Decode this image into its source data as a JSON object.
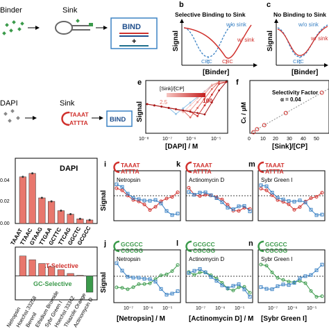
{
  "panels": {
    "a": {
      "binder_label": "Binder",
      "sink_label": "Sink",
      "bind_label": "BIND",
      "plus_label": "+"
    },
    "b": {
      "letter": "b",
      "title": "Selective Binding to Sink",
      "legend_no_sink": "w/o sink",
      "legend_sink": "w/ sink",
      "cbc_left": "CBC",
      "cbc_right": "CBC",
      "ylabel": "Signal",
      "xlabel": "[Binder]"
    },
    "c": {
      "letter": "c",
      "title": "No Binding to Sink",
      "legend_no_sink": "w/o sink",
      "legend_sink": "w/ sink",
      "cbc": "CBC",
      "ylabel": "Signal",
      "xlabel": "[Binder]"
    },
    "d": {
      "dapi_label": "DAPI",
      "sink_label": "Sink",
      "sink_seq_top": "TAAAT",
      "sink_seq_bot": "ATTTA",
      "bind_label": "BIND"
    },
    "e": {
      "letter": "e",
      "ylabel": "Signal",
      "xlabel": "[DAPI] / M",
      "legend_title": "[Sink]/[CP]",
      "legend_min": "2.5",
      "legend_max": "100",
      "xticks": [
        "10⁻⁸",
        "10⁻⁷",
        "10⁻⁶",
        "10⁻⁵"
      ]
    },
    "f": {
      "letter": "f",
      "ylabel": "Cₜ / µM",
      "xlabel": "[Sink]/[CP]",
      "annot_title": "Selectivity Factor",
      "annot_value": "α = 0.04",
      "xticks": [
        "0",
        "10",
        "20",
        "30",
        "40",
        "50"
      ]
    },
    "g": {
      "title": "DAPI",
      "yticks": [
        "0.04",
        "0.02",
        "0.00"
      ]
    },
    "h": {
      "at_label": "AT-Selective",
      "gc_label": "GC-Selective"
    },
    "grid": {
      "ylabel": "Signal",
      "xticks": [
        "10⁻⁷",
        "10⁻⁶",
        "10⁻⁵"
      ],
      "dashed_label": "0.5",
      "i": {
        "letter": "i",
        "drug": "Netropsin",
        "seq_top": "TAAAT",
        "seq_bot": "ATTTA"
      },
      "k": {
        "letter": "k",
        "drug": "Actinomycin D",
        "seq_top": "TAAAT",
        "seq_bot": "ATTTA"
      },
      "m": {
        "letter": "m",
        "drug": "Sybr Green I",
        "seq_top": "TAAAT",
        "seq_bot": "ATTTA"
      },
      "j": {
        "letter": "j",
        "drug": "Netropsin",
        "seq_top": "GCGCC",
        "seq_bot": "CGCGG"
      },
      "l": {
        "letter": "l",
        "drug": "Actinomycin D",
        "seq_top": "GCGCC",
        "seq_bot": "CGCGG"
      },
      "n": {
        "letter": "n",
        "drug": "Sybr Green I",
        "seq_top": "GCGCC",
        "seq_bot": "CGCGG"
      },
      "xlabel_j": "[Netropsin] / M",
      "xlabel_l": "[Actinomycin D] / M",
      "xlabel_n": "[Sybr Green I]"
    }
  },
  "chart_data": [
    {
      "panel": "g",
      "type": "bar",
      "title": "DAPI",
      "categories": [
        "TAAAT",
        "TTAAC",
        "GTAAG",
        "TTGAA",
        "GCTTC",
        "TTCAG",
        "GGCTC",
        "GCGCC"
      ],
      "values": [
        0.04,
        0.043,
        0.022,
        0.019,
        0.011,
        0.008,
        0.004,
        0.003
      ],
      "ylim": [
        0,
        0.05
      ],
      "color": "#e8776d"
    },
    {
      "panel": "h",
      "type": "bar",
      "categories": [
        "Netropsin",
        "Hoechst 33258",
        "Berenil",
        "Ethidium Bromide",
        "Sybr Green I",
        "Hoechst 33342",
        "Thiazole Orange",
        "Actinomycin D"
      ],
      "values": [
        1.6,
        1.3,
        1.0,
        0.75,
        0.5,
        0.2,
        0.05,
        -1.3
      ],
      "ylim": [
        -1.8,
        2.2
      ],
      "colors": {
        "positive": "#e8776d",
        "negative": "#3b9a4b"
      }
    },
    {
      "panel": "f",
      "type": "scatter",
      "x": [
        2.5,
        5,
        10,
        25,
        50
      ],
      "y": [
        0.05,
        0.2,
        0.4,
        1.0,
        2.0
      ],
      "fit": "linear",
      "xlim": [
        0,
        55
      ],
      "ylim": [
        0,
        2.6
      ],
      "color": "#d0312d"
    }
  ],
  "colors": {
    "red": "#d0312d",
    "blue": "#3b82c4",
    "lightblue": "#8ec0e6",
    "green": "#3b9a4b",
    "salmon": "#e8776d",
    "teal": "#1f6e8c"
  }
}
